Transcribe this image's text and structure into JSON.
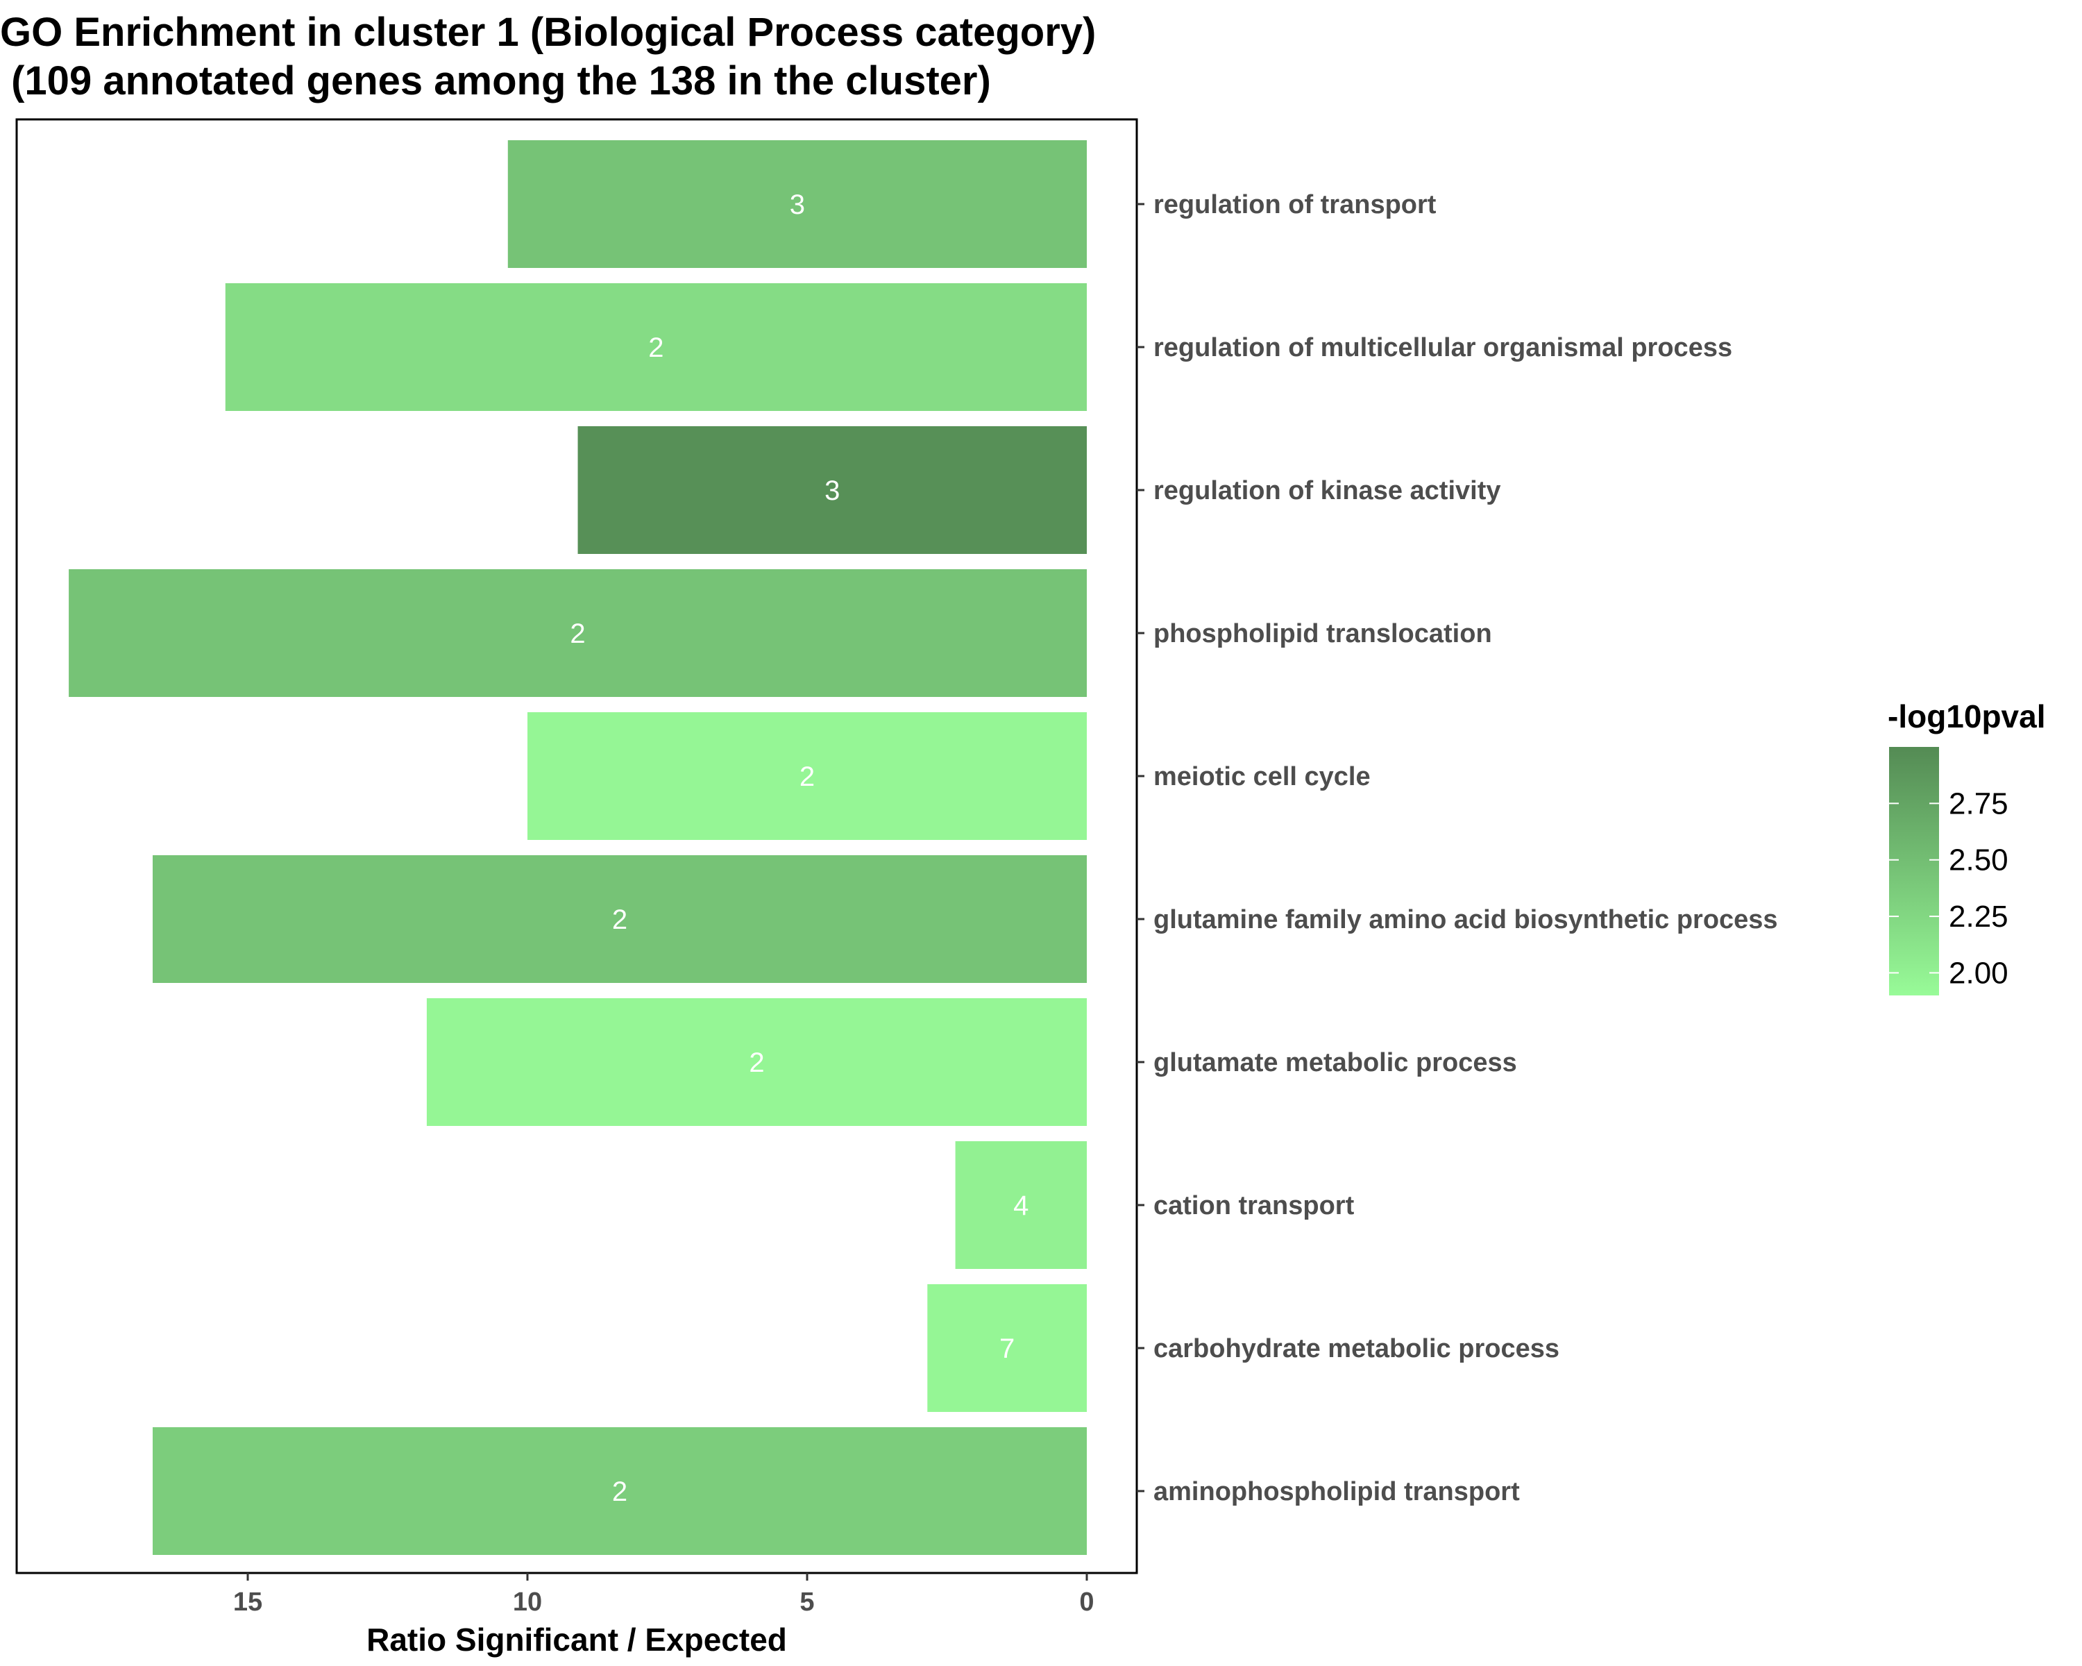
{
  "chart_data": {
    "type": "bar",
    "orientation": "horizontal",
    "title_lines": [
      "GO Enrichment in cluster 1 (Biological Process category)",
      " (109 annotated genes among the 138 in the cluster)"
    ],
    "xlabel": "Ratio Significant / Expected",
    "ylabel": "",
    "x_reversed": true,
    "xlim": [
      0,
      18.8
    ],
    "x_ticks": [
      15,
      10,
      5,
      0
    ],
    "categories": [
      "regulation of transport",
      "regulation of multicellular organismal process",
      "regulation of kinase activity",
      "phospholipid translocation",
      "meiotic cell cycle",
      "glutamine family amino acid biosynthetic process",
      "glutamate metabolic process",
      "cation transport",
      "carbohydrate metabolic process",
      "aminophospholipid transport"
    ],
    "values": [
      10.35,
      15.4,
      9.1,
      18.2,
      10.0,
      16.7,
      11.8,
      2.35,
      2.85,
      16.7
    ],
    "bar_labels": [
      "3",
      "2",
      "3",
      "2",
      "2",
      "2",
      "2",
      "4",
      "7",
      "2"
    ],
    "color_values": [
      2.45,
      2.2,
      2.95,
      2.45,
      1.95,
      2.45,
      1.95,
      2.0,
      1.95,
      2.35
    ],
    "legend": {
      "title": "-log10pval",
      "ticks": [
        2.75,
        2.5,
        2.25,
        2.0
      ],
      "tick_labels": [
        "2.75",
        "2.50",
        "2.25",
        "2.00"
      ],
      "range": [
        1.9,
        3.0
      ],
      "color_low": "#98FB98",
      "color_high": "#548B54",
      "placement": "right"
    },
    "grid": false
  }
}
